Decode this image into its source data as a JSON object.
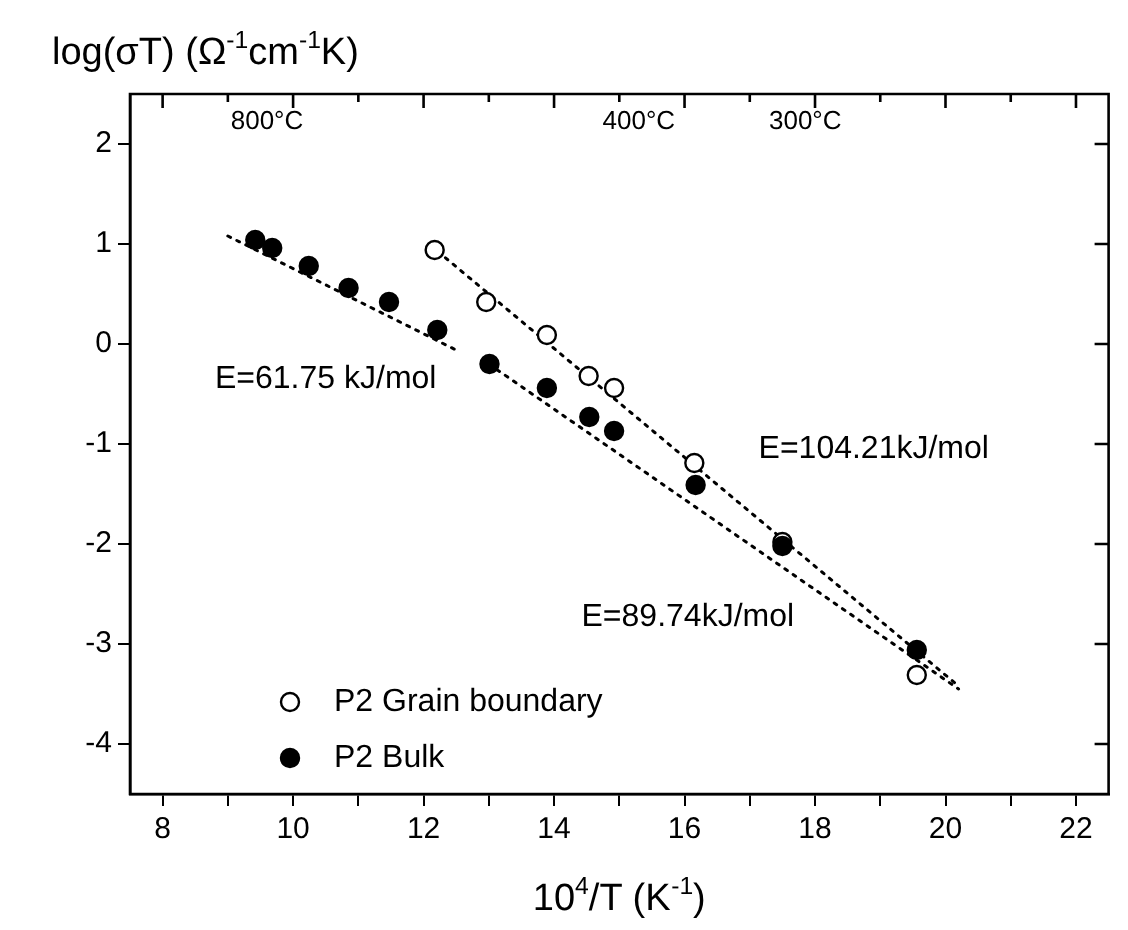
{
  "chart_data": {
    "type": "scatter",
    "xlabel": "10$^{4}$/T (K$^{-1}$)",
    "ylabel": "log(σT) (Ω$^{-1}$cm$^{-1}$K)",
    "xlim": [
      7.5,
      22.5
    ],
    "ylim": [
      -4.5,
      2.5
    ],
    "xticks": [
      8,
      {
        "value": 9,
        "label": null
      },
      10,
      {
        "value": 11,
        "label": null
      },
      12,
      {
        "value": 13,
        "label": null
      },
      14,
      {
        "value": 15,
        "label": null
      },
      16,
      {
        "value": 17,
        "label": null
      },
      18,
      {
        "value": 19,
        "label": null
      },
      20,
      {
        "value": 21,
        "label": null
      },
      22
    ],
    "yticks": [
      -4,
      -3,
      -2,
      -1,
      0,
      1,
      2
    ],
    "grid": false,
    "legend": "bottom left",
    "marker": "circle",
    "series": [
      {
        "name": "P2 Grain boundary",
        "color": "#ffffff",
        "x": [
          12.17,
          12.96,
          13.89,
          14.53,
          14.92,
          16.15,
          17.5,
          19.56
        ],
        "values": [
          0.94,
          0.42,
          0.09,
          -0.32,
          -0.44,
          -1.19,
          -1.98,
          -3.31
        ]
      },
      {
        "name": "P2 Bulk",
        "color": "#000000",
        "x": [
          9.42,
          9.68,
          10.24,
          10.85,
          11.47,
          12.21,
          13.01,
          13.89,
          14.54,
          14.92,
          16.17,
          17.5,
          19.56
        ],
        "values": [
          1.04,
          0.96,
          0.78,
          0.56,
          0.42,
          0.14,
          -0.2,
          -0.44,
          -0.73,
          -0.87,
          -1.41,
          -2.02,
          -3.06
        ]
      },
      {
        "type": "line",
        "color": "#000000",
        "line_style": "dotted",
        "marker": "none",
        "x": [
          9.0,
          12.56
        ],
        "values": [
          1.08,
          -0.08
        ]
      },
      {
        "type": "line",
        "color": "#000000",
        "line_style": "dotted",
        "marker": "none",
        "x": [
          12.1,
          20.2
        ],
        "values": [
          0.99,
          -3.42
        ]
      },
      {
        "type": "line",
        "color": "#000000",
        "line_style": "dotted",
        "marker": "none",
        "x": [
          13.0,
          20.2
        ],
        "values": [
          -0.2,
          -3.45
        ]
      }
    ],
    "annotations": [
      "E=61.75 kJ/mol",
      "E=104.21kJ/mol",
      "E=89.74kJ/mol",
      "800°C",
      "400°C",
      "300°C"
    ]
  }
}
